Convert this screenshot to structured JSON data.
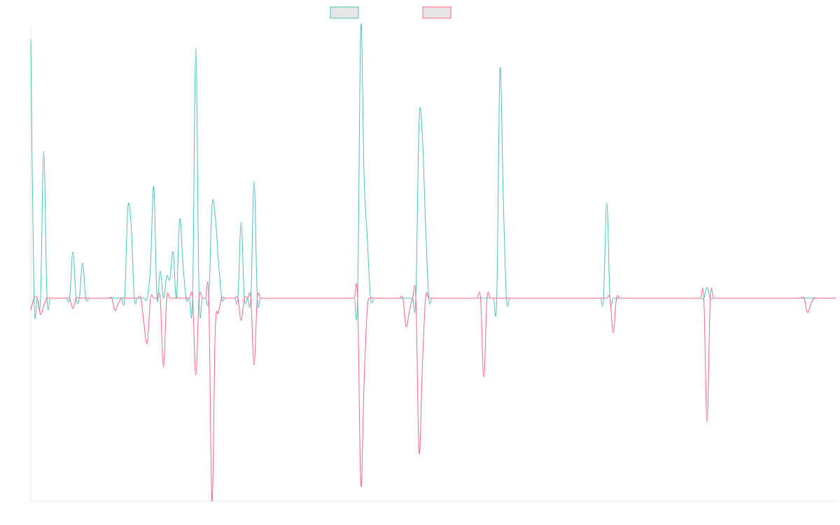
{
  "chart_data": {
    "type": "line",
    "title": "",
    "xlabel": "",
    "ylabel": "",
    "ylim": [
      -100,
      100
    ],
    "x_count": 250,
    "grid": false,
    "legend": "top-center",
    "series": [
      {
        "color": "#4bc0c0",
        "points": [
          [
            0,
            95
          ],
          [
            4,
            54
          ],
          [
            13,
            17
          ],
          [
            16,
            13
          ],
          [
            30,
            33
          ],
          [
            31,
            27
          ],
          [
            37,
            12
          ],
          [
            38,
            41
          ],
          [
            40,
            10
          ],
          [
            42,
            8
          ],
          [
            43,
            7
          ],
          [
            44,
            17
          ],
          [
            46,
            14
          ],
          [
            46.5,
            29
          ],
          [
            51,
            92
          ],
          [
            56,
            34
          ],
          [
            57.5,
            30
          ],
          [
            65,
            28
          ],
          [
            69,
            43
          ],
          [
            102.5,
            100
          ],
          [
            104,
            22
          ],
          [
            120.5,
            65
          ],
          [
            121.5,
            60
          ],
          [
            145.5,
            84
          ],
          [
            178,
            35
          ],
          [
            209,
            4
          ]
        ]
      },
      {
        "color": "#ff6384",
        "points": [
          [
            0,
            -6
          ],
          [
            3.5,
            -8
          ],
          [
            13,
            -5
          ],
          [
            26.5,
            -6
          ],
          [
            35.5,
            -13
          ],
          [
            36,
            -22
          ],
          [
            41,
            -34
          ],
          [
            51,
            -38
          ],
          [
            56,
            -100
          ],
          [
            57.5,
            -16
          ],
          [
            65,
            -11
          ],
          [
            69,
            -33
          ],
          [
            102.5,
            -92
          ],
          [
            104,
            -5
          ],
          [
            116.5,
            -14
          ],
          [
            120.5,
            -76
          ],
          [
            140,
            -39
          ],
          [
            180,
            -17
          ],
          [
            209,
            -61
          ],
          [
            240.5,
            -7
          ]
        ]
      }
    ]
  }
}
